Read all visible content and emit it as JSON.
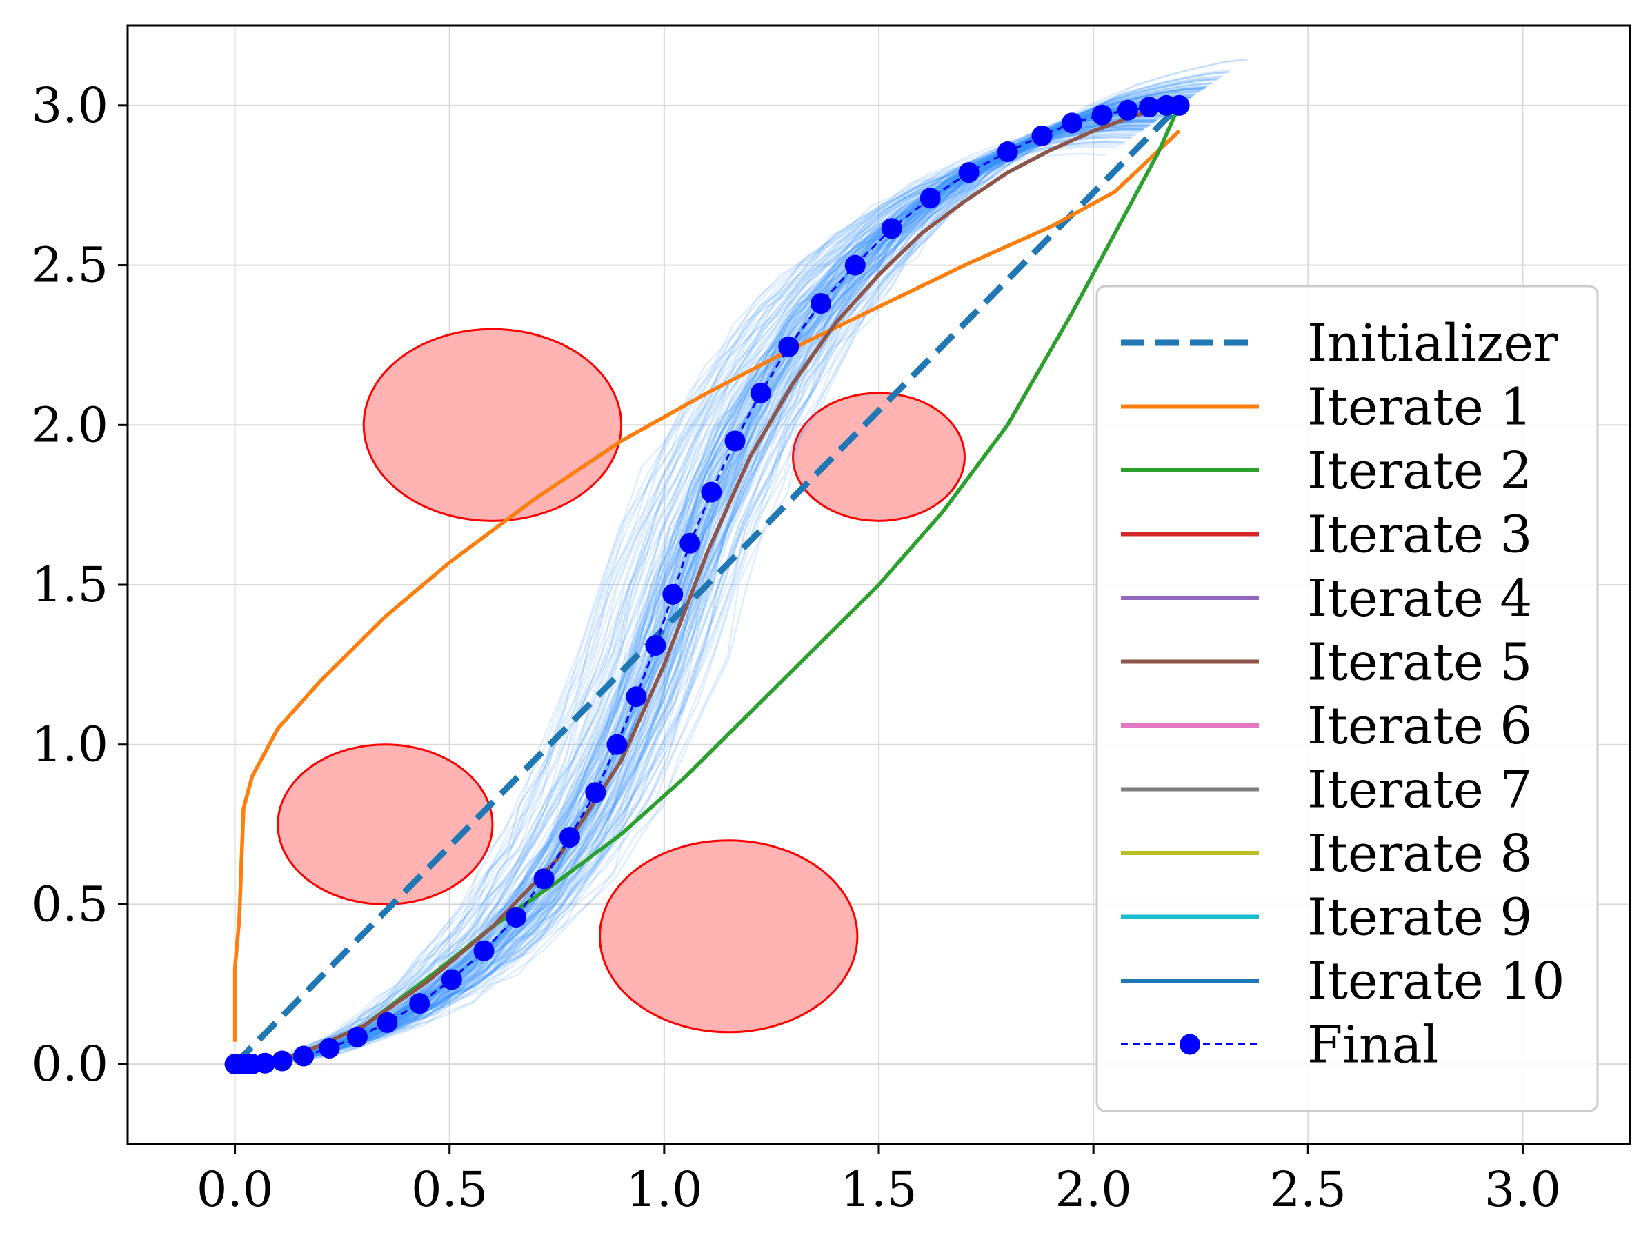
{
  "chart_data": {
    "type": "line",
    "title": "",
    "xlabel": "",
    "ylabel": "",
    "xlim": [
      -0.25,
      3.25
    ],
    "ylim": [
      -0.25,
      3.25
    ],
    "xticks": [
      0.0,
      0.5,
      1.0,
      1.5,
      2.0,
      2.5,
      3.0
    ],
    "yticks": [
      0.0,
      0.5,
      1.0,
      1.5,
      2.0,
      2.5,
      3.0
    ],
    "xtick_labels": [
      "0.0",
      "0.5",
      "1.0",
      "1.5",
      "2.0",
      "2.5",
      "3.0"
    ],
    "ytick_labels": [
      "0.0",
      "0.5",
      "1.0",
      "1.5",
      "2.0",
      "2.5",
      "3.0"
    ],
    "grid": true,
    "legend_position": "right",
    "obstacles": [
      {
        "center": [
          0.6,
          2.0
        ],
        "radii": [
          0.3,
          0.3
        ]
      },
      {
        "center": [
          1.5,
          1.9
        ],
        "radii": [
          0.2,
          0.2
        ]
      },
      {
        "center": [
          0.35,
          0.75
        ],
        "radii": [
          0.25,
          0.25
        ]
      },
      {
        "center": [
          1.15,
          0.4
        ],
        "radii": [
          0.3,
          0.3
        ]
      }
    ],
    "obstacle_fill": "#ffb3b3",
    "obstacle_edge": "#ff0000",
    "samples_color": "#2f8fff",
    "samples_count": 160,
    "series": [
      {
        "name": "Initializer",
        "color": "#1f77b4",
        "style": "dashed",
        "points": [
          [
            0.0,
            0.0
          ],
          [
            2.2,
            3.0
          ]
        ]
      },
      {
        "name": "Iterate 1",
        "color": "#ff7f0e",
        "style": "solid",
        "points": [
          [
            0.0,
            0.07
          ],
          [
            0.0,
            0.3
          ],
          [
            0.01,
            0.45
          ],
          [
            0.02,
            0.8
          ],
          [
            0.04,
            0.9
          ],
          [
            0.1,
            1.05
          ],
          [
            0.2,
            1.2
          ],
          [
            0.35,
            1.4
          ],
          [
            0.5,
            1.57
          ],
          [
            0.7,
            1.77
          ],
          [
            0.9,
            1.95
          ],
          [
            1.1,
            2.1
          ],
          [
            1.3,
            2.24
          ],
          [
            1.5,
            2.37
          ],
          [
            1.7,
            2.5
          ],
          [
            1.9,
            2.62
          ],
          [
            2.05,
            2.73
          ],
          [
            2.2,
            2.92
          ]
        ]
      },
      {
        "name": "Iterate 2",
        "color": "#2ca02c",
        "style": "solid",
        "points": [
          [
            0.0,
            0.0
          ],
          [
            0.15,
            0.03
          ],
          [
            0.3,
            0.12
          ],
          [
            0.45,
            0.27
          ],
          [
            0.6,
            0.43
          ],
          [
            0.75,
            0.57
          ],
          [
            0.9,
            0.72
          ],
          [
            1.05,
            0.9
          ],
          [
            1.2,
            1.1
          ],
          [
            1.35,
            1.3
          ],
          [
            1.5,
            1.5
          ],
          [
            1.65,
            1.73
          ],
          [
            1.8,
            2.0
          ],
          [
            1.95,
            2.35
          ],
          [
            2.05,
            2.6
          ],
          [
            2.15,
            2.85
          ],
          [
            2.2,
            3.0
          ]
        ]
      },
      {
        "name": "Iterate 3",
        "color": "#d62728",
        "style": "solid",
        "points": []
      },
      {
        "name": "Iterate 4",
        "color": "#9467bd",
        "style": "solid",
        "points": []
      },
      {
        "name": "Iterate 5",
        "color": "#8c564b",
        "style": "solid",
        "points": [
          [
            0.0,
            0.0
          ],
          [
            0.15,
            0.03
          ],
          [
            0.3,
            0.12
          ],
          [
            0.45,
            0.26
          ],
          [
            0.6,
            0.43
          ],
          [
            0.75,
            0.64
          ],
          [
            0.9,
            0.95
          ],
          [
            1.0,
            1.25
          ],
          [
            1.1,
            1.6
          ],
          [
            1.2,
            1.9
          ],
          [
            1.3,
            2.13
          ],
          [
            1.4,
            2.32
          ],
          [
            1.5,
            2.47
          ],
          [
            1.6,
            2.6
          ],
          [
            1.7,
            2.7
          ],
          [
            1.8,
            2.79
          ],
          [
            1.9,
            2.86
          ],
          [
            2.0,
            2.92
          ],
          [
            2.1,
            2.97
          ],
          [
            2.2,
            3.0
          ]
        ]
      },
      {
        "name": "Iterate 6",
        "color": "#e377c2",
        "style": "solid",
        "points": []
      },
      {
        "name": "Iterate 7",
        "color": "#7f7f7f",
        "style": "solid",
        "points": []
      },
      {
        "name": "Iterate 8",
        "color": "#bcbd22",
        "style": "solid",
        "points": []
      },
      {
        "name": "Iterate 9",
        "color": "#17becf",
        "style": "solid",
        "points": []
      },
      {
        "name": "Iterate 10",
        "color": "#1f77b4",
        "style": "solid",
        "points": []
      },
      {
        "name": "Final",
        "color": "#0000ff",
        "style": "dashed-marker",
        "points": [
          [
            0.0,
            0.0
          ],
          [
            0.02,
            0.0
          ],
          [
            0.04,
            0.0
          ],
          [
            0.07,
            0.003
          ],
          [
            0.11,
            0.01
          ],
          [
            0.16,
            0.025
          ],
          [
            0.22,
            0.05
          ],
          [
            0.285,
            0.085
          ],
          [
            0.355,
            0.13
          ],
          [
            0.43,
            0.19
          ],
          [
            0.505,
            0.265
          ],
          [
            0.58,
            0.355
          ],
          [
            0.655,
            0.46
          ],
          [
            0.72,
            0.58
          ],
          [
            0.78,
            0.71
          ],
          [
            0.84,
            0.85
          ],
          [
            0.89,
            1.0
          ],
          [
            0.935,
            1.15
          ],
          [
            0.98,
            1.31
          ],
          [
            1.02,
            1.47
          ],
          [
            1.06,
            1.63
          ],
          [
            1.11,
            1.79
          ],
          [
            1.165,
            1.95
          ],
          [
            1.225,
            2.1
          ],
          [
            1.29,
            2.245
          ],
          [
            1.365,
            2.38
          ],
          [
            1.445,
            2.5
          ],
          [
            1.53,
            2.615
          ],
          [
            1.62,
            2.71
          ],
          [
            1.71,
            2.79
          ],
          [
            1.8,
            2.855
          ],
          [
            1.88,
            2.905
          ],
          [
            1.95,
            2.945
          ],
          [
            2.02,
            2.97
          ],
          [
            2.08,
            2.985
          ],
          [
            2.13,
            2.995
          ],
          [
            2.17,
            3.0
          ],
          [
            2.2,
            3.0
          ]
        ]
      }
    ]
  }
}
